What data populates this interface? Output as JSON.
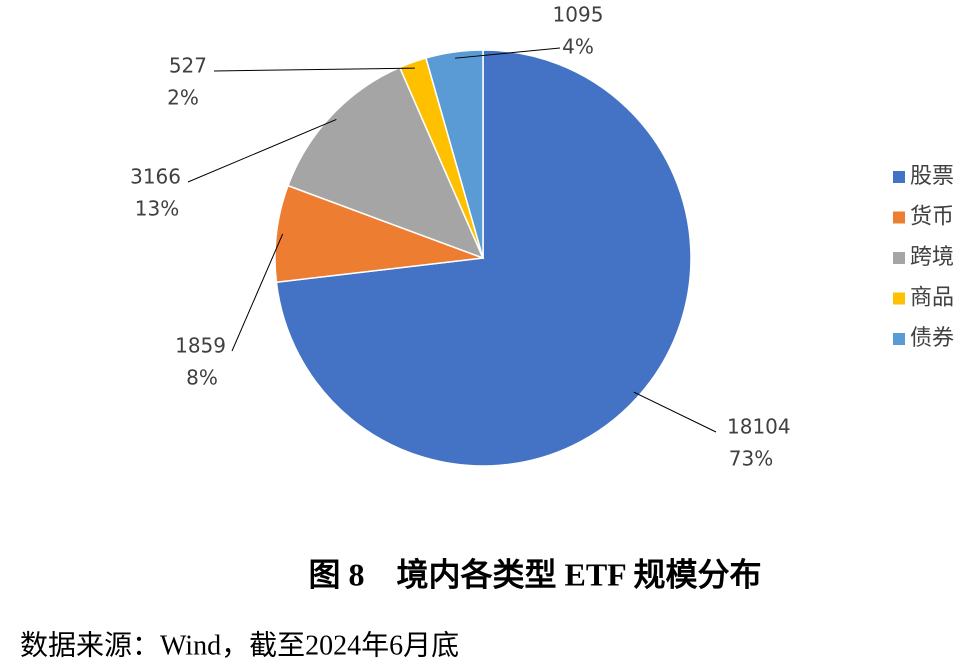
{
  "chart_data": {
    "type": "pie",
    "title": "图 8　境内各类型 ETF 规模分布",
    "source": "数据来源：Wind，截至2024年6月底",
    "series": [
      {
        "name": "股票",
        "color": "#4472c4"
      },
      {
        "name": "货币",
        "color": "#ed7d31"
      },
      {
        "name": "跨境",
        "color": "#a5a5a5"
      },
      {
        "name": "商品",
        "color": "#ffc000"
      },
      {
        "name": "债券",
        "color": "#5b9bd5"
      }
    ],
    "values": [
      18104,
      1859,
      3166,
      527,
      1095
    ],
    "percent_labels": [
      "73%",
      "8%",
      "13%",
      "2%",
      "4%"
    ],
    "legend": "right"
  }
}
